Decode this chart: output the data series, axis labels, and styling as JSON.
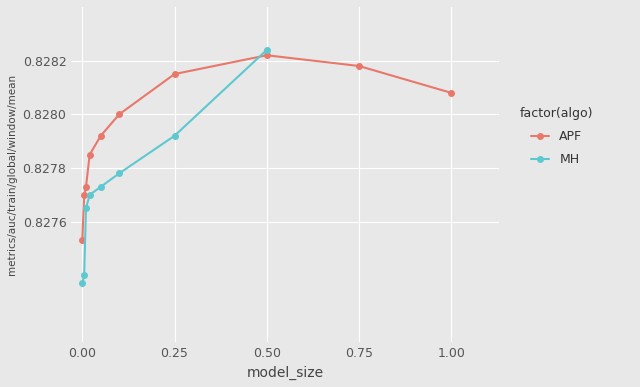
{
  "apf_x": [
    0.0,
    0.005,
    0.01,
    0.02,
    0.05,
    0.1,
    0.25,
    0.5,
    0.75,
    1.0
  ],
  "apf_y": [
    0.82753,
    0.8277,
    0.82773,
    0.82785,
    0.82792,
    0.828,
    0.82815,
    0.82822,
    0.82818,
    0.82808
  ],
  "mh_x": [
    0.005,
    0.01,
    0.02,
    0.05,
    0.1,
    0.25,
    0.5
  ],
  "mh_y": [
    0.8274,
    0.82765,
    0.8277,
    0.82773,
    0.82778,
    0.82792,
    0.82824
  ],
  "mh_low_x": [
    0.0
  ],
  "mh_low_y": [
    0.82737
  ],
  "apf_color": "#e8786a",
  "mh_color": "#5ec8d0",
  "bg_color": "#e8e8e8",
  "grid_color": "#ffffff",
  "xlabel": "model_size",
  "ylabel": "metrics/auc/train/global/window/mean",
  "legend_title": "factor(algo)",
  "xlim": [
    -0.03,
    1.13
  ],
  "ylim": [
    0.82715,
    0.8284
  ],
  "xticks": [
    0.0,
    0.25,
    0.5,
    0.75,
    1.0
  ],
  "xtick_labels": [
    "0.00",
    "0.25",
    "0.50",
    "0.75",
    "1.00"
  ],
  "yticks": [
    0.8276,
    0.8278,
    0.828,
    0.8282
  ],
  "ytick_labels": [
    "0.8276",
    "0.8278",
    "0.8280",
    "0.8282"
  ]
}
